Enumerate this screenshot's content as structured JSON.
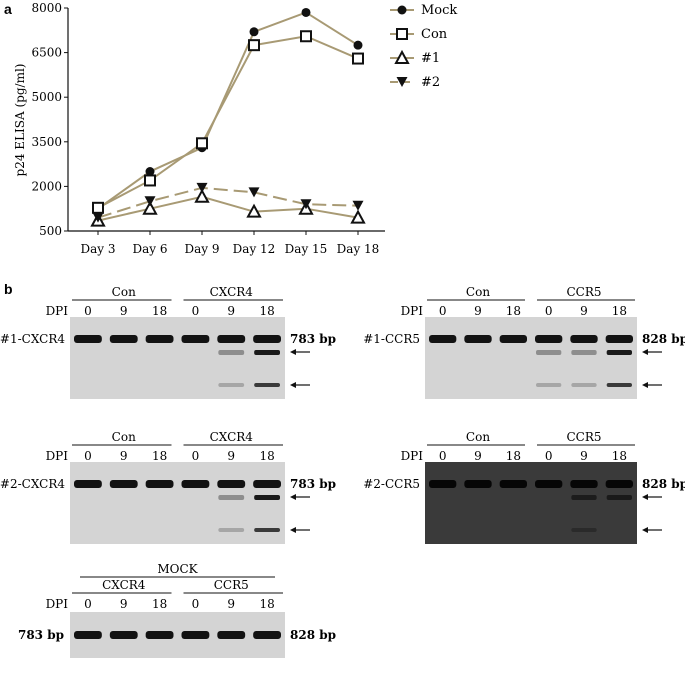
{
  "panel_a_label": "a",
  "panel_b_label": "b",
  "chart_data": {
    "type": "line",
    "title": "",
    "xlabel": "",
    "ylabel": "p24 ELISA (pg/ml)",
    "categories": [
      "Day 3",
      "Day 6",
      "Day 9",
      "Day 12",
      "Day 15",
      "Day 18"
    ],
    "ylim": [
      500,
      8000
    ],
    "yticks": [
      500,
      2000,
      3500,
      5000,
      6500,
      8000
    ],
    "yticklabels": [
      "500",
      "2000",
      "3500",
      "5000",
      "6500",
      "8000"
    ],
    "grid": false,
    "legend_position": "right",
    "line_color": "#a89a74",
    "series": [
      {
        "name": "Mock",
        "marker": "circle-filled",
        "dash": "solid",
        "values": [
          1250,
          2500,
          3300,
          7200,
          7850,
          6750
        ]
      },
      {
        "name": "Con",
        "marker": "square-open",
        "dash": "solid",
        "values": [
          1280,
          2200,
          3450,
          6750,
          7050,
          6300
        ]
      },
      {
        "name": "#1",
        "marker": "triangle-up-open",
        "dash": "solid",
        "values": [
          850,
          1250,
          1650,
          1150,
          1250,
          950
        ]
      },
      {
        "name": "#2",
        "marker": "triangle-down-filled",
        "dash": "long-dash",
        "values": [
          950,
          1500,
          1950,
          1800,
          1400,
          1350
        ]
      }
    ]
  },
  "gels": [
    {
      "row_label": "#1-CXCR4",
      "group_left": "Con",
      "group_right": "CXCR4",
      "dpi_label": "DPI",
      "lanes": [
        "0",
        "9",
        "18",
        "0",
        "9",
        "18"
      ],
      "size_label": "783 bp",
      "theme": "light",
      "cleavage_lanes": [
        4,
        5
      ],
      "arrows": 2
    },
    {
      "row_label": "#1-CCR5",
      "group_left": "Con",
      "group_right": "CCR5",
      "dpi_label": "DPI",
      "lanes": [
        "0",
        "9",
        "18",
        "0",
        "9",
        "18"
      ],
      "size_label": "828 bp",
      "theme": "light",
      "cleavage_lanes": [
        3,
        4,
        5
      ],
      "arrows": 2
    },
    {
      "row_label": "#2-CXCR4",
      "group_left": "Con",
      "group_right": "CXCR4",
      "dpi_label": "DPI",
      "lanes": [
        "0",
        "9",
        "18",
        "0",
        "9",
        "18"
      ],
      "size_label": "783 bp",
      "theme": "light",
      "cleavage_lanes": [
        4,
        5
      ],
      "arrows": 2
    },
    {
      "row_label": "#2-CCR5",
      "group_left": "Con",
      "group_right": "CCR5",
      "dpi_label": "DPI",
      "lanes": [
        "0",
        "9",
        "18",
        "0",
        "9",
        "18"
      ],
      "size_label": "828 bp",
      "theme": "dark",
      "cleavage_lanes": [
        4,
        5
      ],
      "arrows": 2
    },
    {
      "row_label": "",
      "top_label": "MOCK",
      "group_left": "CXCR4",
      "group_right": "CCR5",
      "dpi_label": "DPI",
      "lanes": [
        "0",
        "9",
        "18",
        "0",
        "9",
        "18"
      ],
      "left_size_label": "783 bp",
      "size_label": "828 bp",
      "theme": "light",
      "cleavage_lanes": [],
      "arrows": 0
    }
  ]
}
